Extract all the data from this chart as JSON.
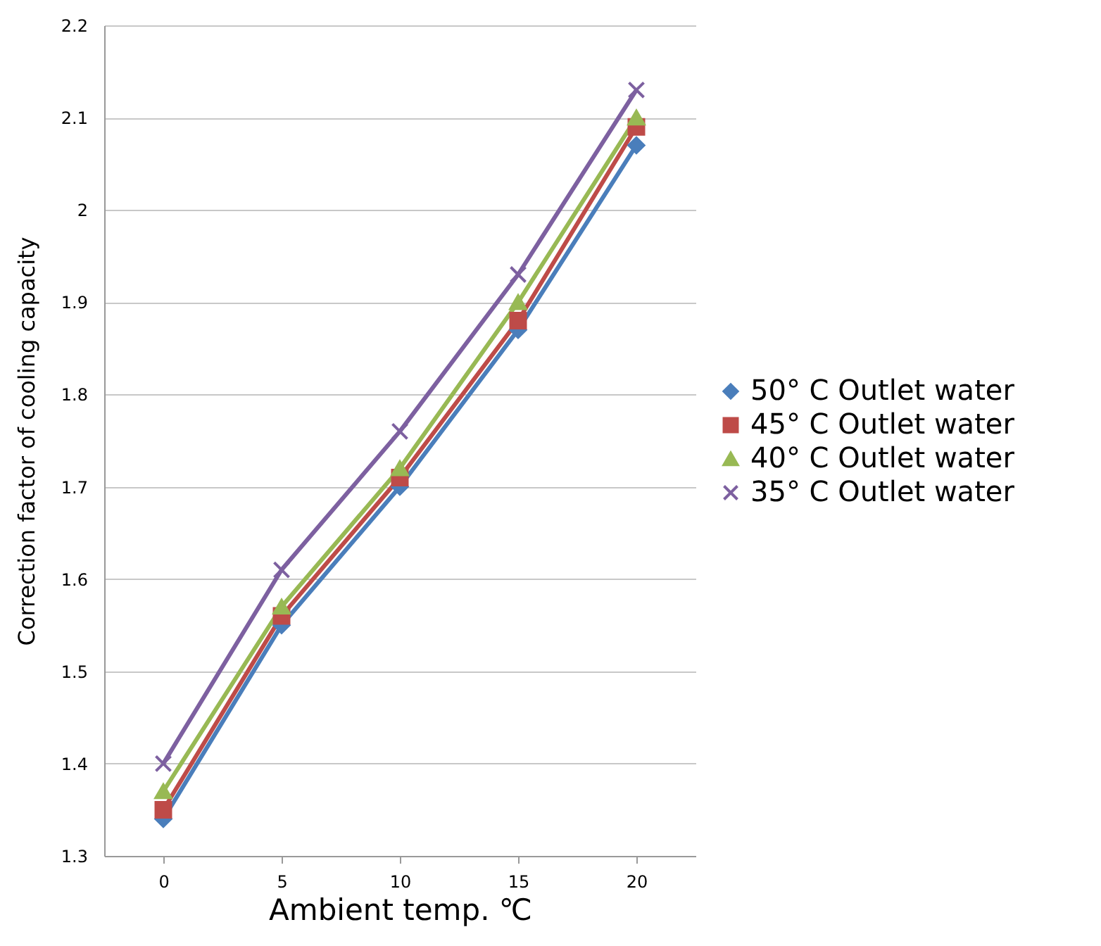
{
  "chart_data": {
    "type": "line",
    "xlabel": "Ambient temp. ℃",
    "ylabel": "Correction factor of cooling capacity",
    "categories": [
      "0",
      "5",
      "10",
      "15",
      "20"
    ],
    "series": [
      {
        "name": "50° C Outlet water",
        "color": "#4a7ebb",
        "marker": "diamond",
        "values": [
          1.34,
          1.55,
          1.7,
          1.87,
          2.07
        ]
      },
      {
        "name": "45° C Outlet water",
        "color": "#be4b48",
        "marker": "square",
        "values": [
          1.35,
          1.56,
          1.71,
          1.88,
          2.09
        ]
      },
      {
        "name": "40° C Outlet water",
        "color": "#98b954",
        "marker": "triangle",
        "values": [
          1.37,
          1.57,
          1.72,
          1.9,
          2.1
        ]
      },
      {
        "name": "35° C Outlet water",
        "color": "#7d60a0",
        "marker": "cross",
        "values": [
          1.4,
          1.61,
          1.76,
          1.93,
          2.13
        ]
      }
    ],
    "ylim": [
      1.3,
      2.2
    ],
    "yticks": [
      1.3,
      1.4,
      1.5,
      1.6,
      1.7,
      1.8,
      1.9,
      2,
      2.1,
      2.2
    ],
    "grid": "y",
    "legend": "right",
    "line_style": "solid"
  }
}
